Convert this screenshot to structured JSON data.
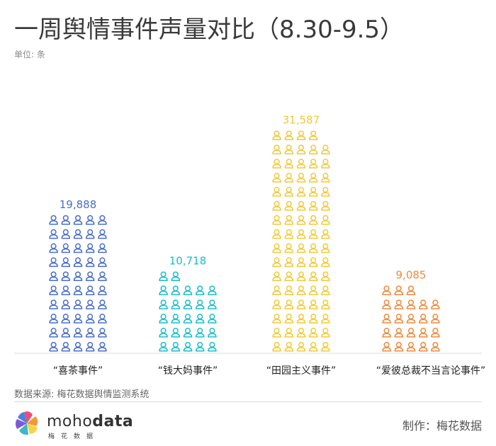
{
  "title": "一周舆情事件声量对比（8.30-9.5）",
  "unit": "单位: 条",
  "source": "数据来源: 梅花数据舆情监测系统",
  "brand": {
    "name_light": "moho",
    "name_bold": "data",
    "sub": "梅花数据"
  },
  "maker": "制作：梅花数据",
  "chart_data": {
    "type": "bar",
    "style": "pictogram",
    "categories": [
      "“喜茶事件”",
      "“钱大妈事件”",
      "“田园主义事件”",
      "“爱彼总裁不当言论事件”"
    ],
    "values": [
      19888,
      10718,
      31587,
      9085
    ],
    "value_labels": [
      "19,888",
      "10,718",
      "31,587",
      "9,085"
    ],
    "colors": [
      "#4a6ec8",
      "#1bbdc9",
      "#f2c935",
      "#f0883a"
    ],
    "icon": "person-icon",
    "title": "一周舆情事件声量对比（8.30-9.5）",
    "ylabel": "",
    "xlabel": ""
  }
}
